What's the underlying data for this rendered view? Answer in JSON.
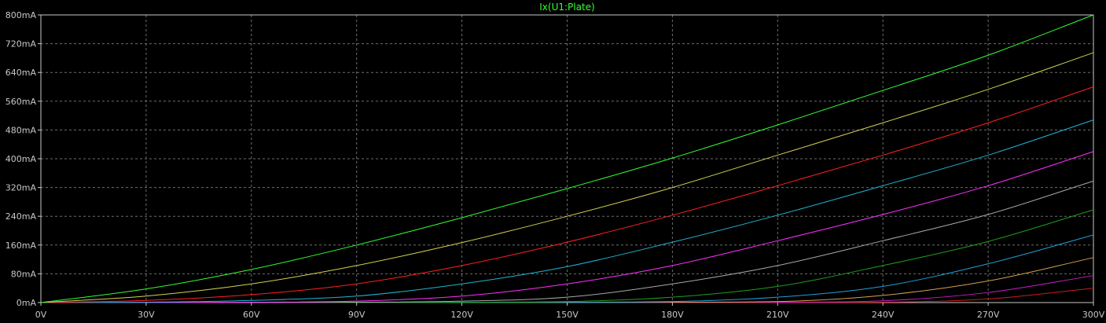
{
  "chart_data": {
    "type": "line",
    "title": "Ix(U1:Plate)",
    "title_color": "#32ff32",
    "background": "#000000",
    "grid": true,
    "grid_color": "#6e6e6e",
    "axis_color": "#c8c8c8",
    "xlim": [
      0,
      300
    ],
    "ylim": [
      0,
      800
    ],
    "x_ticks": [
      0,
      30,
      60,
      90,
      120,
      150,
      180,
      210,
      240,
      270,
      300
    ],
    "x_tick_labels": [
      "0V",
      "30V",
      "60V",
      "90V",
      "120V",
      "150V",
      "180V",
      "210V",
      "240V",
      "270V",
      "300V"
    ],
    "y_ticks": [
      0,
      80,
      160,
      240,
      320,
      400,
      480,
      560,
      640,
      720,
      800
    ],
    "y_tick_labels": [
      "0mA",
      "80mA",
      "160mA",
      "240mA",
      "320mA",
      "400mA",
      "480mA",
      "560mA",
      "640mA",
      "720mA",
      "800mA"
    ],
    "x": [
      0,
      30,
      60,
      90,
      120,
      150,
      180,
      210,
      240,
      270,
      300
    ],
    "series": [
      {
        "color": "#32ff32",
        "values": [
          0,
          38,
          92,
          160,
          236,
          317,
          402,
          494,
          590,
          688,
          800
        ]
      },
      {
        "color": "#d2d250",
        "values": [
          0,
          18,
          52,
          103,
          167,
          240,
          320,
          410,
          500,
          593,
          695
        ]
      },
      {
        "color": "#ff2020",
        "values": [
          0,
          6,
          22,
          52,
          103,
          168,
          243,
          325,
          410,
          500,
          600
        ]
      },
      {
        "color": "#20b4d2",
        "values": [
          0,
          1,
          6,
          18,
          52,
          100,
          168,
          243,
          325,
          410,
          508
        ]
      },
      {
        "color": "#ff30ff",
        "values": [
          0,
          0,
          1,
          4,
          18,
          52,
          103,
          172,
          245,
          325,
          420
        ]
      },
      {
        "color": "#a8a8a8",
        "values": [
          0,
          0,
          0,
          1,
          4,
          15,
          52,
          103,
          172,
          245,
          338
        ]
      },
      {
        "color": "#1e9e1e",
        "values": [
          0,
          0,
          0,
          0,
          1,
          3,
          15,
          45,
          103,
          170,
          258
        ]
      },
      {
        "color": "#20a0d8",
        "values": [
          0,
          0,
          0,
          0,
          0,
          1,
          3,
          15,
          45,
          108,
          188
        ]
      },
      {
        "color": "#d2a050",
        "values": [
          0,
          0,
          0,
          0,
          0,
          0,
          1,
          3,
          20,
          60,
          125
        ]
      },
      {
        "color": "#c81ec8",
        "values": [
          0,
          0,
          0,
          0,
          0,
          0,
          0,
          1,
          5,
          28,
          75
        ]
      },
      {
        "color": "#c81e1e",
        "values": [
          0,
          0,
          0,
          0,
          0,
          0,
          0,
          0,
          1,
          10,
          40
        ]
      }
    ]
  }
}
